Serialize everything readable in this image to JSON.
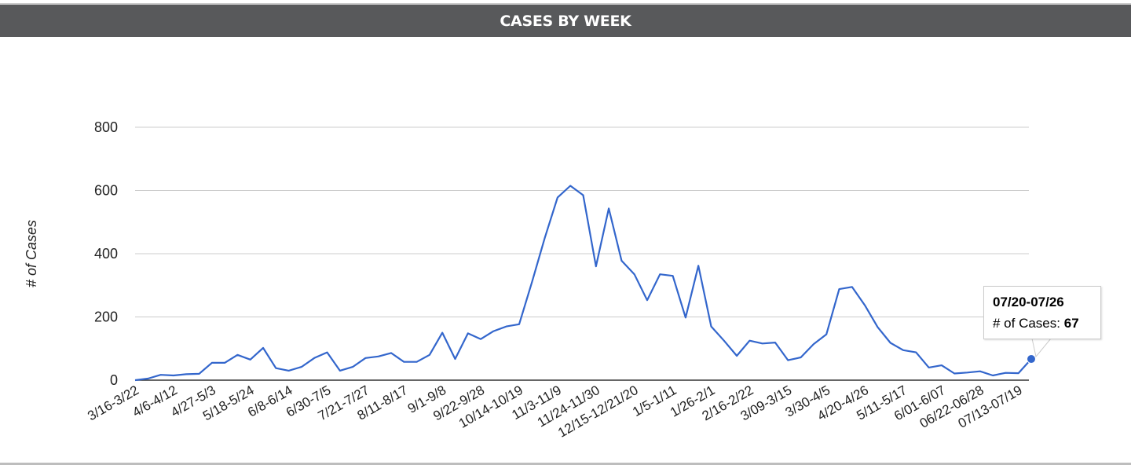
{
  "header": {
    "title": "CASES BY WEEK"
  },
  "colors": {
    "line": "#3366cc",
    "header_bg": "#58595b",
    "grid": "#cccccc"
  },
  "tooltip": {
    "title": "07/20-07/26",
    "label": "# of Cases:",
    "value": "67"
  },
  "chart_data": {
    "type": "line",
    "title": "CASES BY WEEK",
    "xlabel": "",
    "ylabel": "# of Cases",
    "ylim": [
      0,
      800
    ],
    "yticks": [
      0,
      200,
      400,
      600,
      800
    ],
    "grid": true,
    "legend": "none",
    "visible_xtick_labels": [
      "3/16-3/22",
      "4/6-4/12",
      "4/27-5/3",
      "5/18-5/24",
      "6/8-6/14",
      "6/30-7/5",
      "7/21-7/27",
      "8/11-8/17",
      "9/1-9/8",
      "9/22-9/28",
      "10/14-10/19",
      "11/3-11/9",
      "11/24-11/30",
      "12/15-12/21/20",
      "1/5-1/11",
      "1/26-2/1",
      "2/16-2/22",
      "3/09-3/15",
      "3/30-4/5",
      "4/20-4/26",
      "5/11-5/17",
      "6/01-6/07",
      "06/22-06/28",
      "07/13-07/19"
    ],
    "series": [
      {
        "values": [
          0,
          5,
          17,
          15,
          19,
          20,
          55,
          55,
          80,
          65,
          102,
          38,
          30,
          42,
          70,
          88,
          30,
          42,
          70,
          75,
          86,
          58,
          58,
          80,
          150,
          67,
          148,
          130,
          155,
          170,
          177,
          310,
          450,
          578,
          615,
          585,
          360,
          543,
          378,
          335,
          253,
          335,
          330,
          198,
          362,
          170,
          125,
          77,
          125,
          116,
          119,
          63,
          72,
          114,
          145,
          288,
          295,
          237,
          168,
          118,
          95,
          88,
          40,
          47,
          21,
          24,
          28,
          15,
          23,
          22,
          67
        ]
      }
    ]
  }
}
